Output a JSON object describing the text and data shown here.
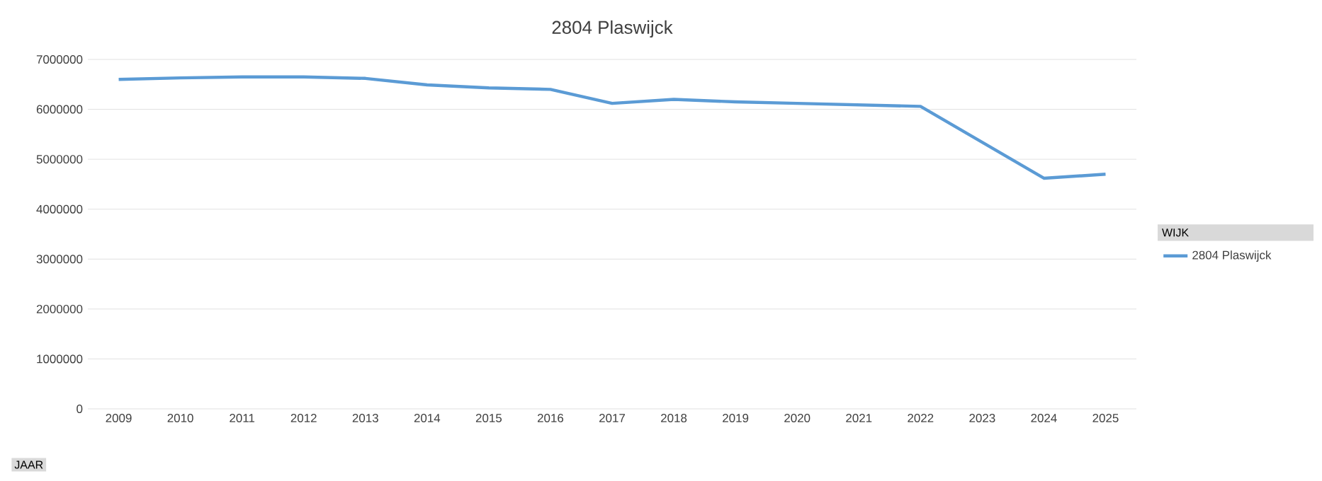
{
  "chart_data": {
    "type": "line",
    "title": "2804 Plaswijck",
    "xlabel": "JAAR",
    "legend_title": "WIJK",
    "categories": [
      "2009",
      "2010",
      "2011",
      "2012",
      "2013",
      "2014",
      "2015",
      "2016",
      "2017",
      "2018",
      "2019",
      "2020",
      "2021",
      "2022",
      "2023",
      "2024",
      "2025"
    ],
    "series": [
      {
        "name": "2804 Plaswijck",
        "color": "#5b9bd5",
        "values": [
          6600000,
          6630000,
          6650000,
          6650000,
          6620000,
          6490000,
          6430000,
          6400000,
          6120000,
          6200000,
          6150000,
          6120000,
          6090000,
          6060000,
          5340000,
          4620000,
          4700000
        ]
      }
    ],
    "ylim": [
      0,
      7000000
    ],
    "yticks": [
      0,
      1000000,
      2000000,
      3000000,
      4000000,
      5000000,
      6000000,
      7000000
    ],
    "grid": "y",
    "legend": "right",
    "marker": "none",
    "line_style": "solid"
  }
}
